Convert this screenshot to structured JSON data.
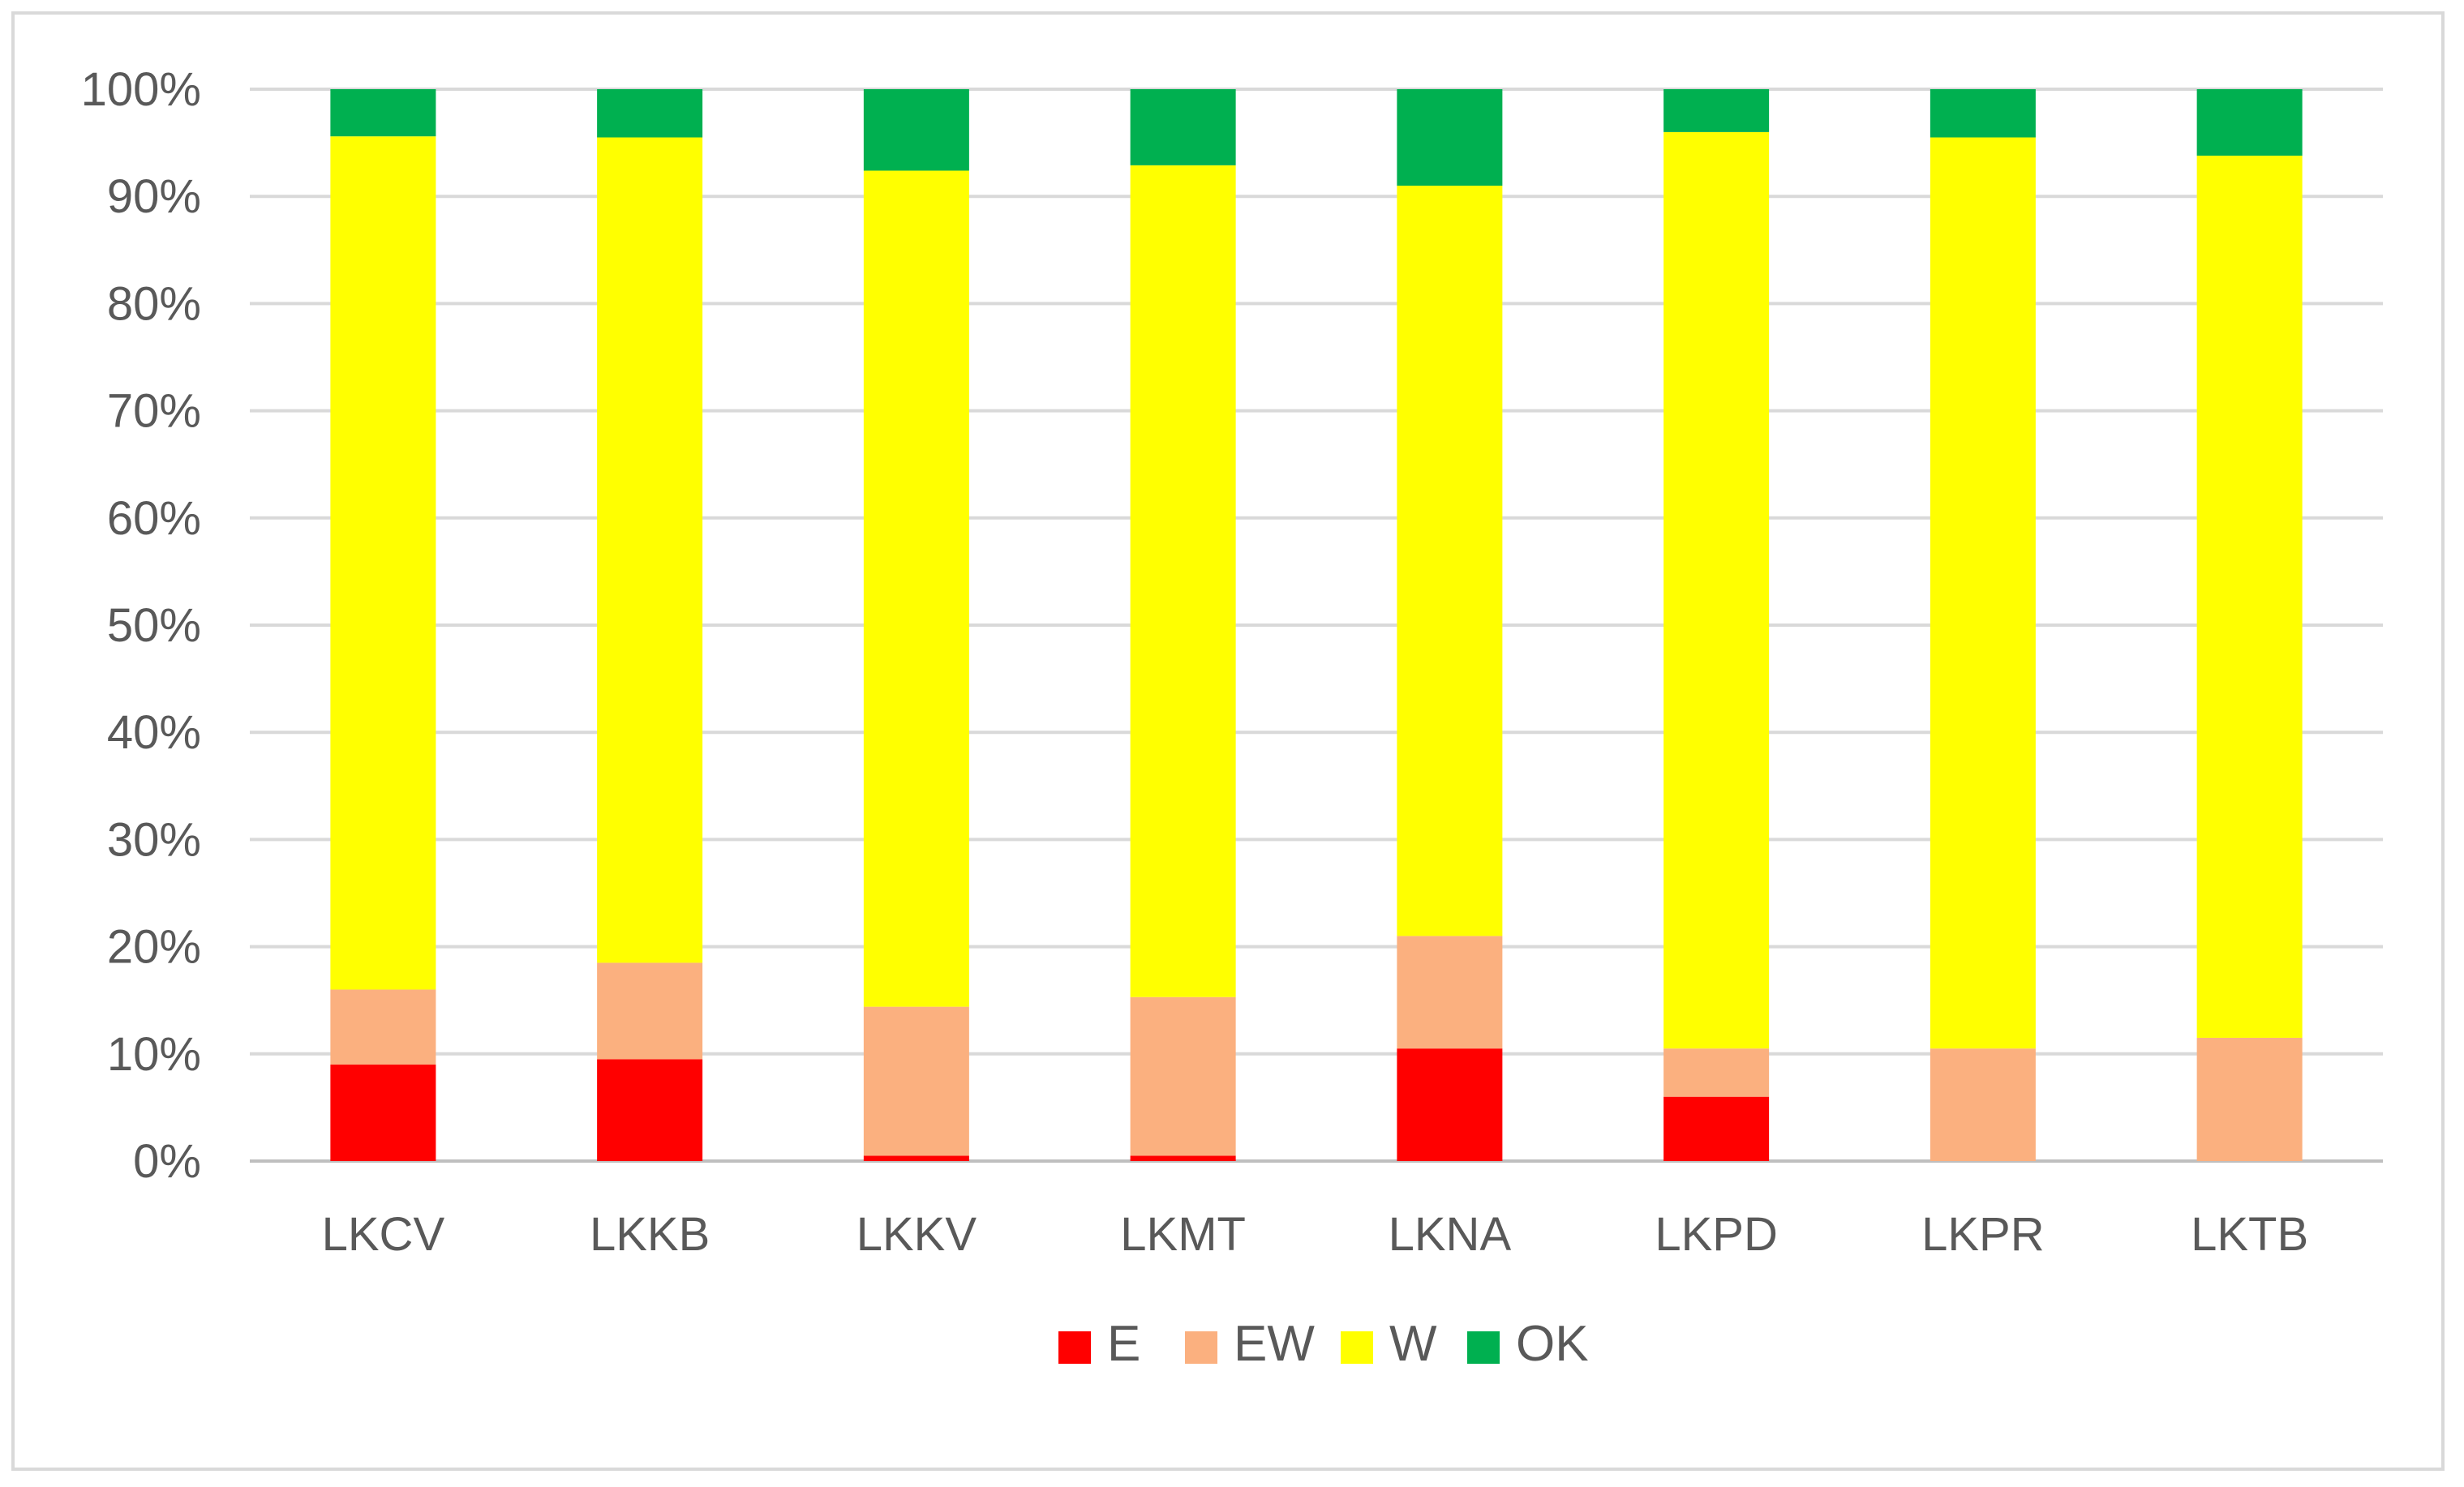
{
  "chart_data": {
    "type": "bar",
    "stacked": true,
    "percent": true,
    "title": "",
    "xlabel": "",
    "ylabel": "",
    "ylim": [
      0,
      100
    ],
    "y_ticks": [
      "0%",
      "10%",
      "20%",
      "30%",
      "40%",
      "50%",
      "60%",
      "70%",
      "80%",
      "90%",
      "100%"
    ],
    "grid": true,
    "legend_position": "bottom",
    "categories": [
      "LKCV",
      "LKKB",
      "LKKV",
      "LKMT",
      "LKNA",
      "LKPD",
      "LKPR",
      "LKTB"
    ],
    "series": [
      {
        "name": "E",
        "color": "#ff0000",
        "values": [
          9,
          9.5,
          0.5,
          0.5,
          10.5,
          6,
          0,
          0
        ]
      },
      {
        "name": "EW",
        "color": "#fbb07f",
        "values": [
          7,
          9,
          13.9,
          14.8,
          10.5,
          4.5,
          10.5,
          11.5
        ]
      },
      {
        "name": "W",
        "color": "#ffff00",
        "values": [
          79.6,
          77,
          78,
          77.6,
          70,
          85.5,
          85,
          82.3
        ]
      },
      {
        "name": "OK",
        "color": "#00b050",
        "values": [
          4.4,
          4.5,
          7.6,
          7.1,
          9,
          4,
          4.5,
          6.2
        ]
      }
    ]
  }
}
